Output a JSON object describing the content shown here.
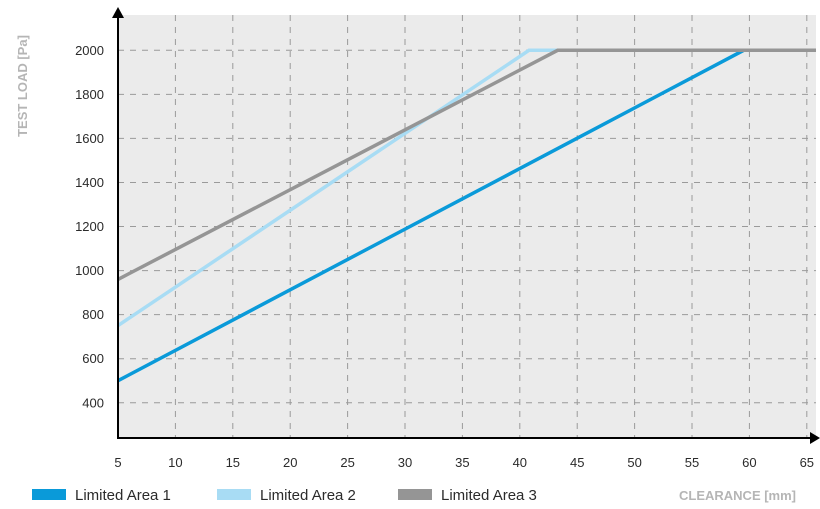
{
  "chart_data": {
    "type": "line",
    "xlabel": "CLEARANCE [mm]",
    "ylabel": "TEST LOAD  [Pa]",
    "xlim": [
      5,
      65.8
    ],
    "ylim": [
      240,
      2160
    ],
    "x_ticks": [
      "5",
      "10",
      "15",
      "20",
      "25",
      "30",
      "35",
      "40",
      "45",
      "50",
      "55",
      "60",
      "65"
    ],
    "y_ticks": [
      "400",
      "600",
      "800",
      "1000",
      "1200",
      "1400",
      "1600",
      "1800",
      "2000"
    ],
    "grid": true,
    "legend_position": "bottom-left",
    "background_color": "#ebebeb",
    "series": [
      {
        "name": "Limited Area 1",
        "color": "#0a9ad9",
        "points": [
          [
            5,
            500
          ],
          [
            59.5,
            2000
          ],
          [
            65.8,
            2000
          ]
        ]
      },
      {
        "name": "Limited Area 2",
        "color": "#a8dcf4",
        "points": [
          [
            5,
            750
          ],
          [
            40.8,
            2000
          ],
          [
            65.8,
            2000
          ]
        ]
      },
      {
        "name": "Limited Area 3",
        "color": "#959595",
        "points": [
          [
            5,
            960
          ],
          [
            43.3,
            2000
          ],
          [
            65.8,
            2000
          ]
        ]
      }
    ]
  }
}
